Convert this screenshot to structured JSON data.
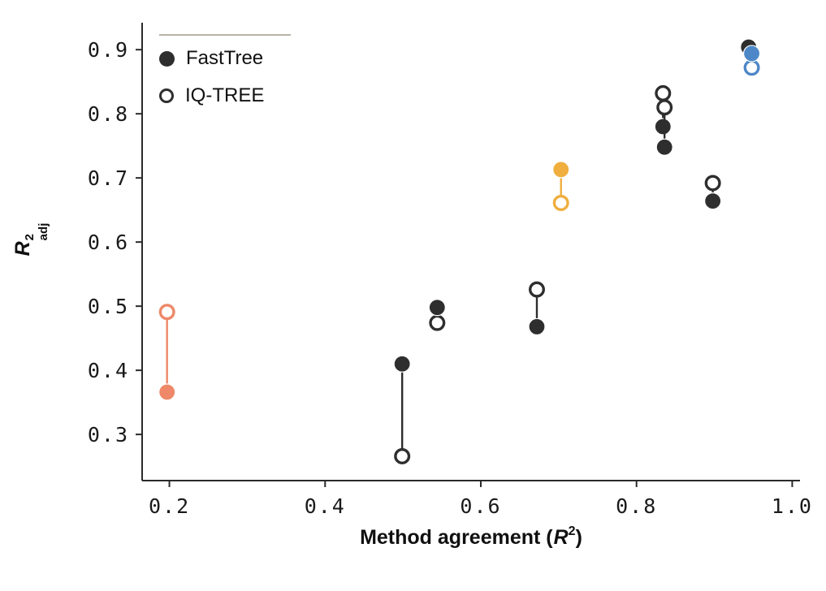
{
  "figure": {
    "background": "#ffffff"
  },
  "chart_data": {
    "type": "scatter",
    "subtype": "dumbbell-paired-points",
    "xlabel": "Method agreement (R²)",
    "ylabel": "R²_adj",
    "xlabel_parts": {
      "prefix": "Method agreement (",
      "var": "R",
      "sup": "2",
      "suffix": ")"
    },
    "ylabel_parts": {
      "var": "R",
      "sup": "2",
      "sub": "adj"
    },
    "xlim": [
      0.165,
      1.01
    ],
    "ylim": [
      0.228,
      0.942
    ],
    "grid": false,
    "legend_position": "upper-left",
    "xticks": [
      0.2,
      0.4,
      0.6,
      0.8,
      1.0
    ],
    "xtick_labels": [
      "0.2",
      "0.4",
      "0.6",
      "0.8",
      "1.0"
    ],
    "yticks": [
      0.3,
      0.4,
      0.5,
      0.6,
      0.7,
      0.8,
      0.9
    ],
    "ytick_labels": [
      "0.3",
      "0.4",
      "0.5",
      "0.6",
      "0.7",
      "0.8",
      "0.9"
    ],
    "legend": [
      {
        "label": "FastTree",
        "marker": "filled-circle"
      },
      {
        "label": "IQ-TREE",
        "marker": "open-circle"
      }
    ],
    "colors": {
      "default": "#2e2e2e",
      "salmon": "#ee8868",
      "amber": "#efae3e",
      "blue": "#4d87c7",
      "axis": "#2a2a2a",
      "tick_text": "#1a1a1a",
      "legend_line": "#b9b2a6",
      "background": "#ffffff"
    },
    "pairs": [
      {
        "x": 0.197,
        "fasttree": 0.366,
        "iqtree": 0.491,
        "color": "salmon"
      },
      {
        "x": 0.499,
        "fasttree": 0.41,
        "iqtree": 0.266,
        "color": "default"
      },
      {
        "x": 0.544,
        "fasttree": 0.498,
        "iqtree": 0.474,
        "color": "default"
      },
      {
        "x": 0.672,
        "fasttree": 0.468,
        "iqtree": 0.526,
        "color": "default"
      },
      {
        "x": 0.703,
        "fasttree": 0.713,
        "iqtree": 0.661,
        "color": "amber"
      },
      {
        "x": 0.834,
        "fasttree": 0.78,
        "iqtree": 0.832,
        "color": "default"
      },
      {
        "x": 0.836,
        "fasttree": 0.748,
        "iqtree": 0.81,
        "color": "default"
      },
      {
        "x": 0.898,
        "fasttree": 0.664,
        "iqtree": 0.692,
        "color": "default"
      },
      {
        "x": 0.944,
        "fasttree": 0.904,
        "iqtree": null,
        "color": "default"
      },
      {
        "x": 0.948,
        "fasttree": 0.894,
        "iqtree": 0.872,
        "color": "blue"
      }
    ]
  }
}
